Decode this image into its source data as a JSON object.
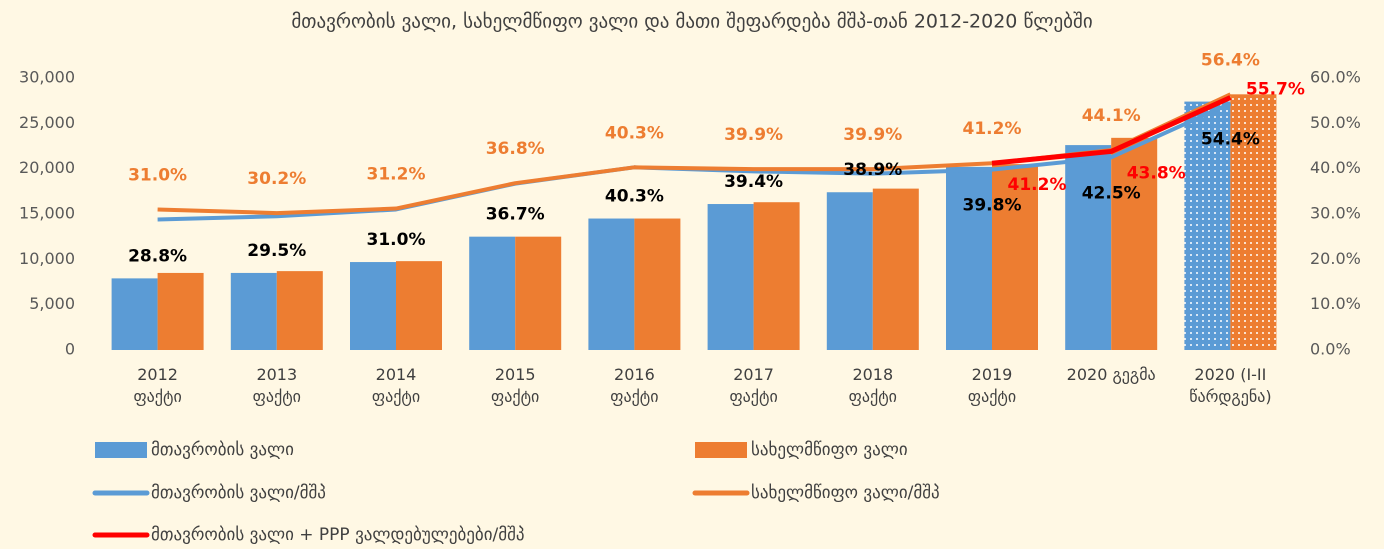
{
  "chart_data": {
    "type": "bar",
    "title": "მთავრობის ვალი, სახელმწიფო ვალი და მათი შეფარდება მშპ-თან 2012-2020 წლებში",
    "categories": [
      "2012\nფაქტი",
      "2013\nფაქტი",
      "2014\nფაქტი",
      "2015\nფაქტი",
      "2016\nფაქტი",
      "2017\nფაქტი",
      "2018\nფაქტი",
      "2019\nფაქტი",
      "2020 გეგმა",
      "2020 (I-II\nწარდგენა)"
    ],
    "ylim": [
      0,
      30000
    ],
    "yticks": [
      0,
      {
        "value": 5000,
        "label": "5,000"
      },
      {
        "value": 10000,
        "label": "10,000"
      },
      {
        "value": 15000,
        "label": "15,000"
      },
      {
        "value": 20000,
        "label": "20,000"
      },
      {
        "value": 25000,
        "label": "25,000"
      },
      {
        "value": 30000,
        "label": "30,000"
      }
    ],
    "y2lim": [
      0,
      60
    ],
    "y2ticks": [
      {
        "value": 0,
        "label": "0.0%"
      },
      {
        "value": 10,
        "label": "10.0%"
      },
      {
        "value": 20,
        "label": "20.0%"
      },
      {
        "value": 30,
        "label": "30.0%"
      },
      {
        "value": 40,
        "label": "40.0%"
      },
      {
        "value": 50,
        "label": "50.0%"
      },
      {
        "value": 60,
        "label": "60.0%"
      }
    ],
    "dotted_category": 9,
    "series": [
      {
        "name": "მთავრობის ვალი",
        "kind": "bar",
        "color": "#5b9bd5",
        "values": [
          7900,
          8500,
          9700,
          12500,
          14500,
          16100,
          17400,
          20200,
          22600,
          27400
        ]
      },
      {
        "name": "სახელმწიფო ვალი",
        "kind": "bar",
        "color": "#ed7d31",
        "values": [
          8500,
          8700,
          9800,
          12500,
          14500,
          16300,
          17800,
          20500,
          23400,
          28200
        ]
      },
      {
        "name": "მთავრობის ვალი/მშპ",
        "kind": "line",
        "axis": "y2",
        "color": "#5b9bd5",
        "label_color": "#000000",
        "values": [
          28.8,
          29.5,
          31.0,
          36.7,
          40.3,
          39.4,
          38.9,
          39.8,
          42.5,
          54.4
        ],
        "value_labels": [
          "28.8%",
          "29.5%",
          "31.0%",
          "36.7%",
          "40.3%",
          "39.4%",
          "38.9%",
          "39.8%",
          "42.5%",
          "54.4%"
        ]
      },
      {
        "name": "სახელმწიფო ვალი/მშპ",
        "kind": "line",
        "axis": "y2",
        "color": "#ed7d31",
        "label_color": "#ed7d31",
        "values": [
          31.0,
          30.2,
          31.2,
          36.8,
          40.3,
          39.9,
          39.9,
          41.2,
          44.1,
          56.4
        ],
        "value_labels": [
          "31.0%",
          "30.2%",
          "31.2%",
          "36.8%",
          "40.3%",
          "39.9%",
          "39.9%",
          "41.2%",
          "44.1%",
          "56.4%"
        ]
      },
      {
        "name": "მთავრობის ვალი + PPP ვალდებულებები/მშპ",
        "kind": "line",
        "axis": "y2",
        "color": "#ff0000",
        "label_color": "#ff0000",
        "values": [
          null,
          null,
          null,
          null,
          null,
          null,
          null,
          41.2,
          43.8,
          55.7
        ],
        "value_labels": [
          null,
          null,
          null,
          null,
          null,
          null,
          null,
          "41.2%",
          "43.8%",
          "55.7%"
        ]
      }
    ]
  }
}
